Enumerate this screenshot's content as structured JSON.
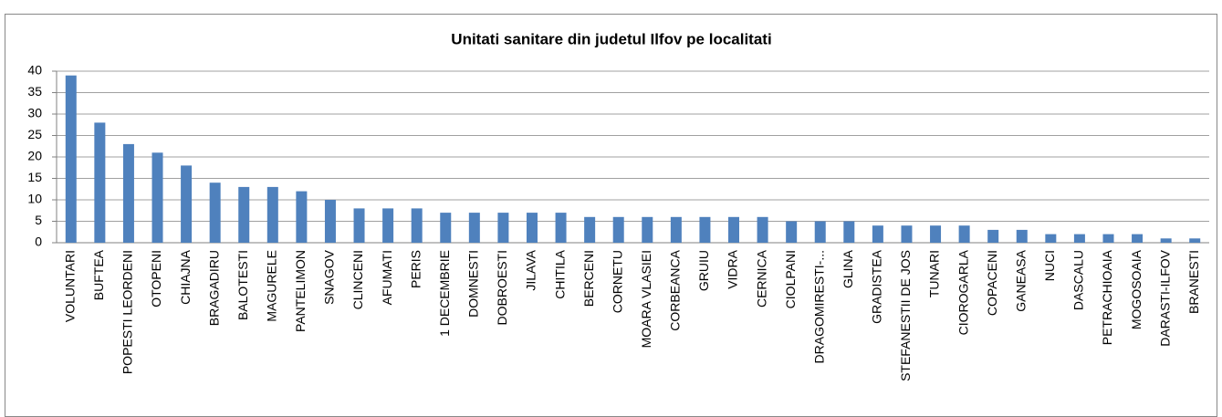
{
  "chart_data": {
    "type": "bar",
    "title": "Unitati sanitare din judetul Ilfov pe localitati",
    "categories": [
      "VOLUNTARI",
      "BUFTEA",
      "POPESTI LEORDENI",
      "OTOPENI",
      "CHIAJNA",
      "BRAGADIRU",
      "BALOTESTI",
      "MAGURELE",
      "PANTELIMON",
      "SNAGOV",
      "CLINCENI",
      "AFUMATI",
      "PERIS",
      "1 DECEMBRIE",
      "DOMNESTI",
      "DOBROESTI",
      "JILAVA",
      "CHITILA",
      "BERCENI",
      "CORNETU",
      "MOARA VLASIEI",
      "CORBEANCA",
      "GRUIU",
      "VIDRA",
      "CERNICA",
      "CIOLPANI",
      "DRAGOMIRESTI-...",
      "GLINA",
      "GRADISTEA",
      "STEFANESTII DE JOS",
      "TUNARI",
      "CIOROGARLA",
      "COPACENI",
      "GANEASA",
      "NUCI",
      "DASCALU",
      "PETRACHIOAIA",
      "MOGOSOAIA",
      "DARASTI-ILFOV",
      "BRANESTI"
    ],
    "values": [
      39,
      28,
      23,
      21,
      18,
      14,
      13,
      13,
      12,
      10,
      8,
      8,
      8,
      7,
      7,
      7,
      7,
      7,
      6,
      6,
      6,
      6,
      6,
      6,
      6,
      5,
      5,
      5,
      4,
      4,
      4,
      4,
      3,
      3,
      2,
      2,
      2,
      2,
      1,
      1
    ],
    "color": "#4f81bd",
    "ylim": [
      0,
      40
    ],
    "yticks": [
      0,
      5,
      10,
      15,
      20,
      25,
      30,
      35,
      40
    ],
    "grid": true
  }
}
